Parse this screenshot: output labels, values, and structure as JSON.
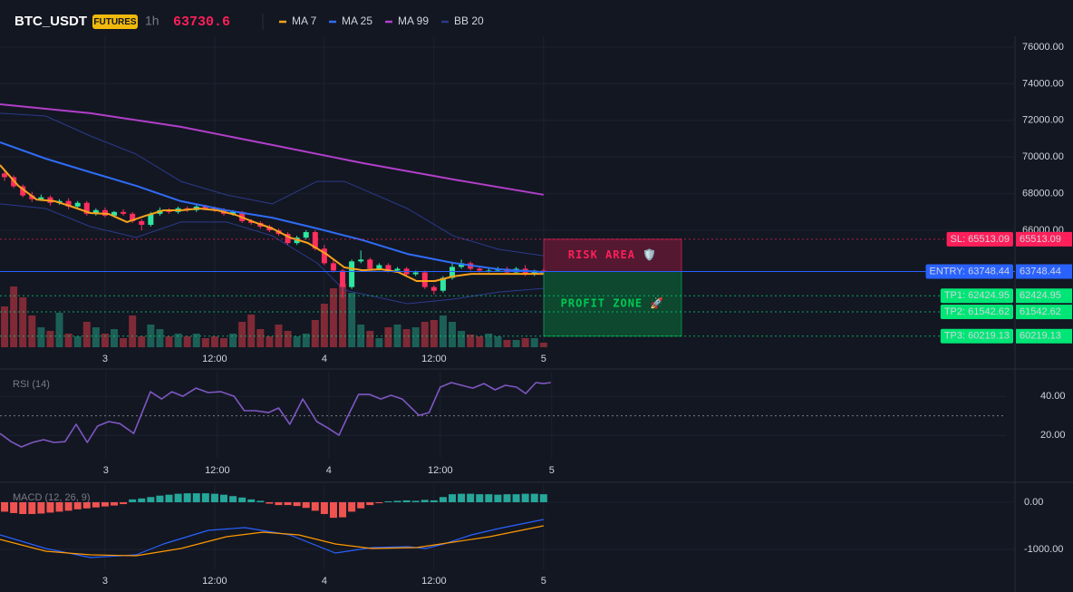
{
  "header": {
    "symbol": "BTC_USDT",
    "badge": "FUTURES",
    "interval": "1h"
  },
  "chart_data": [
    {
      "type": "candlestick",
      "grid": true,
      "xlim": [
        0.5,
        111.6
      ],
      "xticks": [
        {
          "value": 12,
          "label": "3"
        },
        {
          "value": 24,
          "label": "12:00"
        },
        {
          "value": 36,
          "label": "4"
        },
        {
          "value": 48,
          "label": "12:00"
        },
        {
          "value": 60,
          "label": "5"
        }
      ],
      "ylim": [
        59615,
        76594
      ],
      "yticks": [
        {
          "value": 76000,
          "label": "76000.00"
        },
        {
          "value": 74000,
          "label": "74000.00"
        },
        {
          "value": 72000,
          "label": "72000.00"
        },
        {
          "value": 70000,
          "label": "70000.00"
        },
        {
          "value": 68000,
          "label": "68000.00"
        },
        {
          "value": 66000,
          "label": "66000.00"
        }
      ],
      "candles": {
        "up_color": "#2ee6a0",
        "down_color": "#ff2f5f",
        "x": [
          1,
          2,
          3,
          4,
          5,
          6,
          7,
          8,
          9,
          10,
          11,
          12,
          13,
          14,
          15,
          16,
          17,
          18,
          19,
          20,
          21,
          22,
          23,
          24,
          25,
          26,
          27,
          28,
          29,
          30,
          31,
          32,
          33,
          34,
          35,
          36,
          37,
          38,
          39,
          40,
          41,
          42,
          43,
          44,
          45,
          46,
          47,
          48,
          49,
          50,
          51,
          52,
          53,
          54,
          55,
          56,
          57,
          58,
          59,
          60
        ],
        "open": [
          69100,
          68900,
          68400,
          67900,
          67700,
          67800,
          67500,
          67600,
          67300,
          67500,
          66900,
          67100,
          66800,
          67000,
          66900,
          66500,
          66300,
          66900,
          67100,
          67000,
          67200,
          67100,
          67300,
          67200,
          67100,
          66900,
          67000,
          66500,
          66400,
          66200,
          66000,
          65800,
          65300,
          65600,
          65900,
          65000,
          64200,
          63800,
          62900,
          64300,
          64400,
          63900,
          64100,
          63800,
          63900,
          63600,
          63700,
          62900,
          62700,
          63400,
          64000,
          64200,
          63900,
          63800,
          63800,
          63900,
          63700,
          63900,
          63600,
          63800
        ],
        "high": [
          69250,
          69000,
          68500,
          68100,
          67950,
          67900,
          67700,
          67750,
          67600,
          67600,
          67200,
          67250,
          67050,
          67150,
          67000,
          66600,
          67000,
          67250,
          67200,
          67300,
          67300,
          67400,
          67400,
          67300,
          67200,
          67100,
          67050,
          66600,
          66500,
          66300,
          66100,
          65900,
          65700,
          66000,
          66000,
          65200,
          64400,
          63900,
          64400,
          64900,
          64500,
          64200,
          64200,
          64000,
          64000,
          63800,
          63800,
          63000,
          63500,
          64200,
          64400,
          64300,
          64000,
          63950,
          64000,
          64000,
          64000,
          64100,
          63850,
          63900
        ],
        "low": [
          68700,
          68300,
          67800,
          67550,
          67600,
          67350,
          67400,
          67150,
          67200,
          66800,
          66800,
          66700,
          66700,
          66800,
          66400,
          66000,
          66200,
          66800,
          66900,
          66900,
          67000,
          67000,
          67100,
          67000,
          66800,
          66800,
          66400,
          66300,
          66100,
          65900,
          65700,
          65200,
          65200,
          65500,
          64900,
          64100,
          63700,
          62300,
          62800,
          64200,
          63800,
          63800,
          63700,
          63700,
          63500,
          63500,
          62800,
          62500,
          62600,
          63300,
          63900,
          63800,
          63700,
          63700,
          63750,
          63600,
          63600,
          63500,
          63500,
          63650
        ],
        "close": [
          68900,
          68400,
          67900,
          67700,
          67800,
          67500,
          67600,
          67300,
          67500,
          66900,
          67100,
          66800,
          67000,
          66900,
          66500,
          66300,
          66900,
          67100,
          67000,
          67200,
          67100,
          67300,
          67200,
          67100,
          66900,
          67000,
          66500,
          66400,
          66200,
          66000,
          65800,
          65300,
          65600,
          65900,
          65000,
          64200,
          63800,
          62900,
          64300,
          64400,
          63900,
          64100,
          63800,
          63900,
          63600,
          63700,
          62900,
          62700,
          63400,
          64000,
          64200,
          63900,
          63800,
          63800,
          63900,
          63700,
          63900,
          63600,
          63800,
          63730.6
        ]
      },
      "volume": {
        "ylim": [
          0,
          100
        ],
        "up_color": "#1c5f56",
        "down_color": "#7f2a36",
        "values": [
          45,
          67,
          55,
          35,
          22,
          18,
          38,
          15,
          12,
          28,
          22,
          15,
          20,
          10,
          35,
          12,
          25,
          20,
          12,
          15,
          12,
          15,
          10,
          12,
          10,
          15,
          28,
          36,
          20,
          12,
          25,
          18,
          12,
          15,
          30,
          48,
          65,
          70,
          60,
          25,
          18,
          10,
          22,
          25,
          20,
          22,
          28,
          30,
          35,
          28,
          18,
          14,
          12,
          15,
          12,
          8,
          8,
          10,
          10,
          5
        ]
      },
      "series": [
        {
          "name": "MA 7",
          "color": "#f7a21b",
          "x": [
            0.5,
            2.5,
            4.5,
            6.5,
            8.4,
            10.4,
            12.4,
            14.4,
            16.4,
            18.4,
            20.3,
            22.3,
            24.3,
            26.3,
            28.3,
            30.3,
            32.2,
            34.2,
            36.2,
            38.2,
            40.2,
            42.2,
            44.1,
            46.1,
            48.1,
            50.1,
            52.1,
            54.1,
            56.1,
            60.0
          ],
          "values": [
            69560,
            68430,
            67680,
            67590,
            67290,
            66940,
            66890,
            66450,
            66790,
            67090,
            67090,
            67190,
            67090,
            66840,
            66450,
            66100,
            65610,
            65310,
            64710,
            63970,
            63820,
            63870,
            63720,
            63230,
            63230,
            63480,
            63620,
            63620,
            63620,
            63620
          ]
        },
        {
          "name": "MA 25",
          "color": "#2f6cf6",
          "x": [
            0.5,
            5.5,
            10.4,
            15.4,
            20.3,
            25.3,
            30.3,
            35.2,
            40.2,
            45.1,
            50.1,
            55.1,
            60.0
          ],
          "values": [
            70800,
            69910,
            69170,
            68430,
            67590,
            67090,
            66690,
            66100,
            65460,
            64710,
            64220,
            63870,
            63720
          ]
        },
        {
          "name": "MA 99",
          "color": "#b13fc9",
          "x": [
            0.5,
            10.4,
            20.3,
            30.3,
            40.2,
            50.1,
            60.0
          ],
          "values": [
            72880,
            72390,
            71650,
            70660,
            69670,
            68780,
            67940
          ]
        },
        {
          "name": "BB 20",
          "color": "#2b3a8a",
          "x": [
            0.5,
            5.5,
            10.4,
            15.4,
            20.3,
            25.3,
            30.3,
            35.2,
            38.2,
            45.1,
            50.1,
            55.1,
            60.0
          ],
          "values": [
            72390,
            72240,
            71150,
            70160,
            68670,
            67930,
            67440,
            68670,
            68670,
            67190,
            65700,
            64960,
            64610
          ],
          "lower_x": [
            0.5,
            5.5,
            10.4,
            15.4,
            20.3,
            25.3,
            30.3,
            35.2,
            38.2,
            45.1,
            50.1,
            55.1,
            60.0
          ],
          "lower": [
            67440,
            67190,
            66200,
            65610,
            66450,
            66450,
            65700,
            64220,
            62730,
            61990,
            62240,
            62630,
            62830
          ]
        }
      ],
      "levels": [
        {
          "label": "SL: 65513.09",
          "value": 65513.09,
          "color": "#ff1f5a",
          "text_color": "#ffffff",
          "style": "dotted"
        },
        {
          "label": "ENTRY: 63748.44",
          "value": 63748.44,
          "color": "#2962ff",
          "text_color": "#ffffff",
          "style": "solid"
        },
        {
          "label": "TP1: 62424.95",
          "value": 62424.95,
          "color": "#00e676",
          "text_color": "#131722",
          "style": "dotted"
        },
        {
          "label": "TP2: 61542.62",
          "value": 61542.62,
          "color": "#00e676",
          "text_color": "#131722",
          "style": "dotted"
        },
        {
          "label": "TP3: 60219.13",
          "value": 60219.13,
          "color": "#00e676",
          "text_color": "#131722",
          "style": "dotted"
        }
      ],
      "zones": [
        {
          "label": "RISK AREA 🛡️",
          "color": "#ff1f5a"
        },
        {
          "label": "PROFIT ZONE 🚀",
          "color": "#00c853"
        }
      ]
    },
    {
      "type": "line",
      "title": "RSI (14)",
      "grid": true,
      "xlim": [
        0.6,
        108.9
      ],
      "xticks": [
        {
          "value": 12,
          "label": "3"
        },
        {
          "value": 24,
          "label": "12:00"
        },
        {
          "value": 36,
          "label": "4"
        },
        {
          "value": 48,
          "label": "12:00"
        },
        {
          "value": 60,
          "label": "5"
        }
      ],
      "ylim": [
        8.4,
        52.6
      ],
      "yticks": [
        {
          "value": 40,
          "label": "40.00"
        },
        {
          "value": 20,
          "label": "20.00"
        }
      ],
      "levels": [
        30
      ],
      "color": "#7e57c2",
      "x": [
        0.6,
        1.8,
        2.9,
        4.1,
        5.3,
        6.4,
        7.6,
        8.8,
        10.0,
        11.1,
        12.3,
        13.5,
        15.0,
        16.8,
        18.0,
        19.1,
        20.3,
        21.7,
        23.0,
        24.4,
        25.8,
        26.9,
        28.1,
        29.5,
        30.6,
        31.8,
        33.2,
        34.7,
        35.9,
        37.1,
        38.0,
        39.2,
        40.4,
        41.6,
        42.7,
        43.9,
        45.7,
        46.8,
        48.0,
        49.2,
        50.3,
        51.5,
        52.7,
        53.9,
        55.0,
        56.2,
        57.2,
        58.3,
        59.1,
        59.9
      ],
      "values": [
        20.9,
        16.7,
        14.0,
        16.3,
        17.7,
        16.3,
        16.7,
        25.6,
        16.3,
        24.7,
        27.0,
        26.0,
        20.9,
        42.3,
        38.6,
        42.3,
        40.0,
        44.2,
        41.9,
        42.3,
        40.0,
        32.6,
        32.6,
        31.6,
        34.0,
        25.6,
        38.6,
        27.0,
        23.7,
        20.0,
        29.3,
        40.9,
        40.9,
        38.6,
        40.5,
        38.6,
        30.2,
        31.6,
        44.7,
        47.0,
        45.6,
        44.2,
        46.5,
        43.3,
        45.6,
        44.7,
        41.4,
        47.0,
        46.5,
        47.0
      ]
    },
    {
      "type": "macd",
      "title": "MACD (12, 26, 9)",
      "grid": true,
      "xlim": [
        0.5,
        111.6
      ],
      "xticks": [
        {
          "value": 12,
          "label": "3"
        },
        {
          "value": 24,
          "label": "12:00"
        },
        {
          "value": 36,
          "label": "4"
        },
        {
          "value": 48,
          "label": "12:00"
        },
        {
          "value": 60,
          "label": "5"
        }
      ],
      "ylim": [
        -1423,
        365
      ],
      "yticks": [
        {
          "value": 0,
          "label": "0.00"
        },
        {
          "value": -1000,
          "label": "-1000.00"
        }
      ],
      "histogram": {
        "up_color": "#26a69a",
        "down_color": "#ef5350",
        "x": [
          1,
          2,
          3,
          4,
          5,
          6,
          7,
          8,
          9,
          10,
          11,
          12,
          13,
          14,
          15,
          16,
          17,
          18,
          19,
          20,
          21,
          22,
          23,
          24,
          25,
          26,
          27,
          28,
          29,
          30,
          31,
          32,
          33,
          34,
          35,
          36,
          37,
          38,
          39,
          40,
          41,
          42,
          43,
          44,
          45,
          46,
          47,
          48,
          49,
          50,
          51,
          52,
          53,
          54,
          55,
          56,
          57,
          58,
          59,
          60
        ],
        "values": [
          -200,
          -230,
          -250,
          -250,
          -240,
          -220,
          -200,
          -180,
          -150,
          -130,
          -110,
          -90,
          -70,
          -40,
          60,
          80,
          110,
          140,
          160,
          180,
          190,
          190,
          190,
          180,
          160,
          130,
          100,
          60,
          30,
          -30,
          -60,
          -60,
          -80,
          -120,
          -180,
          -250,
          -330,
          -320,
          -200,
          -130,
          -60,
          -20,
          20,
          30,
          40,
          30,
          50,
          40,
          110,
          170,
          180,
          180,
          170,
          170,
          160,
          170,
          170,
          180,
          180,
          170
        ]
      },
      "series": [
        {
          "color": "#2962ff",
          "x": [
            0.5,
            5.5,
            10.4,
            15.4,
            18.4,
            23.3,
            27.3,
            32.2,
            37.2,
            41.2,
            45.1,
            47.1,
            49.1,
            52.1,
            55.1,
            60.0
          ],
          "values": [
            -692,
            -981,
            -1173,
            -1115,
            -885,
            -596,
            -538,
            -692,
            -1077,
            -962,
            -942,
            -981,
            -885,
            -692,
            -558,
            -365
          ]
        },
        {
          "color": "#ff9800",
          "x": [
            0.5,
            5.5,
            10.4,
            15.4,
            20.3,
            25.3,
            29.3,
            33.2,
            37.2,
            41.2,
            46.1,
            50.1,
            54.1,
            60.0
          ],
          "values": [
            -788,
            -1038,
            -1115,
            -1135,
            -981,
            -731,
            -635,
            -692,
            -885,
            -981,
            -962,
            -846,
            -731,
            -500
          ]
        }
      ]
    }
  ]
}
